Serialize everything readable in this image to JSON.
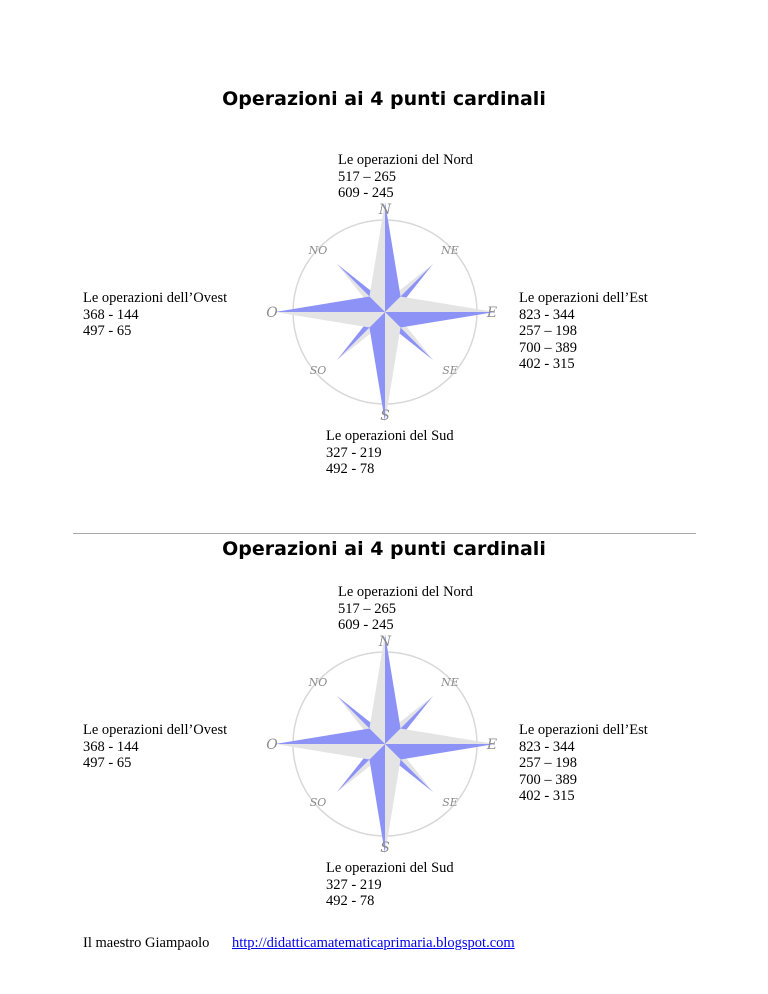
{
  "worksheets": [
    {
      "title": "Operazioni ai 4 punti cardinali",
      "north": {
        "heading": "Le operazioni del Nord",
        "ops": [
          "517 – 265",
          "609 - 245"
        ]
      },
      "west": {
        "heading": "Le operazioni dell’Ovest",
        "ops": [
          "368 - 144",
          "497 - 65"
        ]
      },
      "east": {
        "heading": "Le operazioni dell’Est",
        "ops": [
          "823 - 344",
          "257 – 198",
          "700 – 389",
          "402 - 315"
        ]
      },
      "south": {
        "heading": "Le operazioni del Sud",
        "ops": [
          "327 - 219",
          "492 - 78"
        ]
      }
    },
    {
      "title": "Operazioni ai 4 punti cardinali",
      "north": {
        "heading": "Le operazioni del Nord",
        "ops": [
          "517 – 265",
          "609 - 245"
        ]
      },
      "west": {
        "heading": "Le operazioni dell’Ovest",
        "ops": [
          "368 - 144",
          "497 - 65"
        ]
      },
      "east": {
        "heading": "Le operazioni dell’Est",
        "ops": [
          "823 - 344",
          "257 – 198",
          "700 – 389",
          "402 - 315"
        ]
      },
      "south": {
        "heading": "Le operazioni del Sud",
        "ops": [
          "327 - 219",
          "492 - 78"
        ]
      }
    }
  ],
  "compass_labels": {
    "n": "N",
    "s": "S",
    "e": "E",
    "o": "O",
    "ne": "NE",
    "no": "NO",
    "se": "SE",
    "so": "SO"
  },
  "colors": {
    "rose_blue": "#8c92f6",
    "rose_grey": "#e4e4e4",
    "rose_ring": "#d8d8d8",
    "label_grey": "#8c8c8c"
  },
  "footer": {
    "author": "Il maestro Giampaolo",
    "link": "http://didatticamatematicaprimaria.blogspot.com"
  }
}
